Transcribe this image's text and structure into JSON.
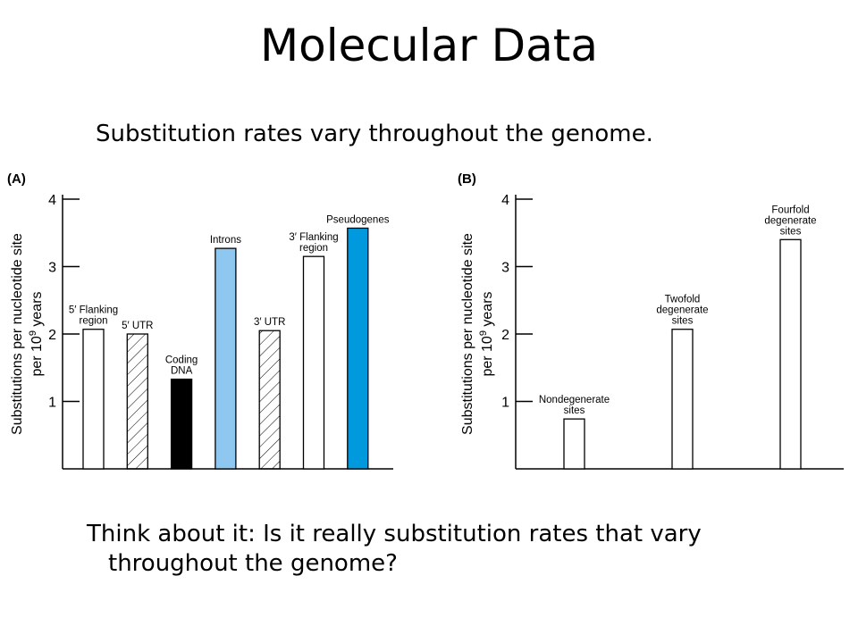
{
  "slide": {
    "title": "Molecular Data",
    "subtitle": "Substitution rates vary throughout the genome.",
    "question": "Think about it: Is it really substitution rates that vary throughout the genome?"
  },
  "chart_data": [
    {
      "type": "bar",
      "panel_label": "(A)",
      "ylabel_line1": "Substitutions per nucleotide site",
      "ylabel_line2_prefix": "per 10",
      "ylabel_line2_sup": "9",
      "ylabel_line2_suffix": " years",
      "yticks": [
        1,
        2,
        3,
        4
      ],
      "ylim": [
        0,
        4
      ],
      "categories": [
        {
          "lines": [
            "5′ Flanking",
            "region"
          ],
          "value": 2.07,
          "fill": "white"
        },
        {
          "lines": [
            "5′ UTR"
          ],
          "value": 2.0,
          "fill": "hatched"
        },
        {
          "lines": [
            "Coding",
            "DNA"
          ],
          "value": 1.33,
          "fill": "black"
        },
        {
          "lines": [
            "Introns"
          ],
          "value": 3.27,
          "fill": "lightblue"
        },
        {
          "lines": [
            "3′ UTR"
          ],
          "value": 2.05,
          "fill": "hatched"
        },
        {
          "lines": [
            "3′ Flanking",
            "region"
          ],
          "value": 3.15,
          "fill": "white"
        },
        {
          "lines": [
            "Pseudogenes"
          ],
          "value": 3.57,
          "fill": "blue"
        }
      ],
      "colors": {
        "lightblue": "#8ec7ef",
        "blue": "#0099dd",
        "black": "#000000"
      }
    },
    {
      "type": "bar",
      "panel_label": "(B)",
      "ylabel_line1": "Substitutions per nucleotide site",
      "ylabel_line2_prefix": "per 10",
      "ylabel_line2_sup": "9",
      "ylabel_line2_suffix": " years",
      "yticks": [
        1,
        2,
        3,
        4
      ],
      "ylim": [
        0,
        4
      ],
      "categories": [
        {
          "lines": [
            "Nondegenerate",
            "sites"
          ],
          "value": 0.74,
          "fill": "white"
        },
        {
          "lines": [
            "Twofold",
            "degenerate",
            "sites"
          ],
          "value": 2.07,
          "fill": "white"
        },
        {
          "lines": [
            "Fourfold",
            "degenerate",
            "sites"
          ],
          "value": 3.4,
          "fill": "white"
        }
      ]
    }
  ]
}
